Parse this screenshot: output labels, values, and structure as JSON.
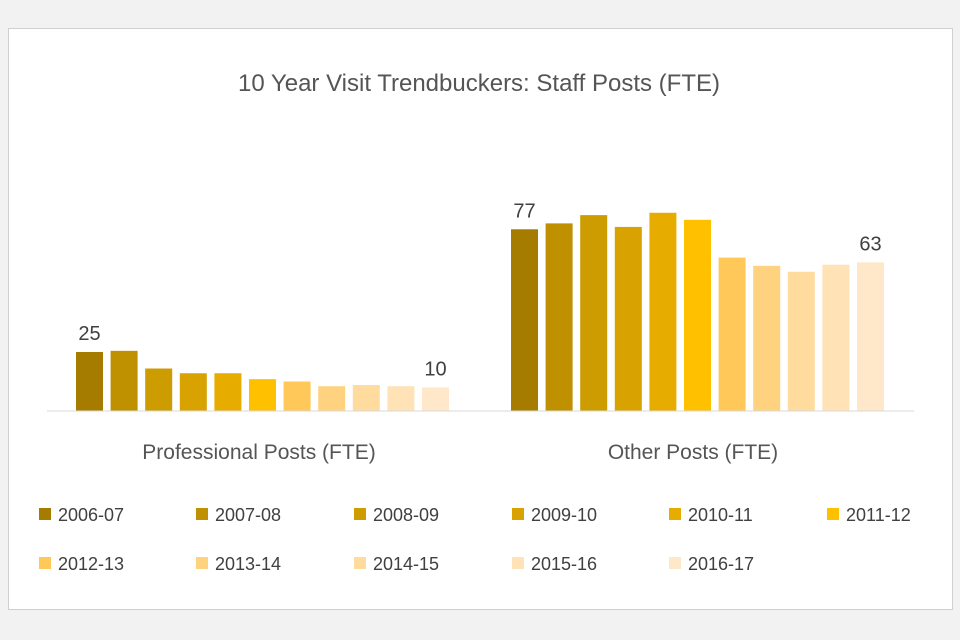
{
  "chart_data": {
    "type": "bar",
    "title": "10 Year Visit Trendbuckers: Staff Posts (FTE)",
    "categories": [
      "Professional Posts (FTE)",
      "Other Posts (FTE)"
    ],
    "ylim": [
      0,
      100
    ],
    "grid": false,
    "legend_position": "bottom",
    "series": [
      {
        "name": "2006-07",
        "color": "#A67C00",
        "values": [
          25,
          77
        ]
      },
      {
        "name": "2007-08",
        "color": "#BF9000",
        "values": [
          25.5,
          79.5
        ]
      },
      {
        "name": "2008-09",
        "color": "#CC9C00",
        "values": [
          18,
          83
        ]
      },
      {
        "name": "2009-10",
        "color": "#D8A200",
        "values": [
          16,
          78
        ]
      },
      {
        "name": "2010-11",
        "color": "#E6AC00",
        "values": [
          16,
          84
        ]
      },
      {
        "name": "2011-12",
        "color": "#FFC000",
        "values": [
          13.5,
          81
        ]
      },
      {
        "name": "2012-13",
        "color": "#FFC858",
        "values": [
          12.5,
          65
        ]
      },
      {
        "name": "2013-14",
        "color": "#FFD280",
        "values": [
          10.5,
          61.5
        ]
      },
      {
        "name": "2014-15",
        "color": "#FFDB9E",
        "values": [
          11,
          59
        ]
      },
      {
        "name": "2015-16",
        "color": "#FFE2B6",
        "values": [
          10.5,
          62
        ]
      },
      {
        "name": "2016-17",
        "color": "#FFE8CA",
        "values": [
          10,
          63
        ]
      }
    ],
    "data_labels": [
      {
        "category": "Professional Posts (FTE)",
        "series": "2006-07",
        "text": "25"
      },
      {
        "category": "Professional Posts (FTE)",
        "series": "2016-17",
        "text": "10"
      },
      {
        "category": "Other Posts (FTE)",
        "series": "2006-07",
        "text": "77"
      },
      {
        "category": "Other Posts (FTE)",
        "series": "2016-17",
        "text": "63"
      }
    ]
  }
}
